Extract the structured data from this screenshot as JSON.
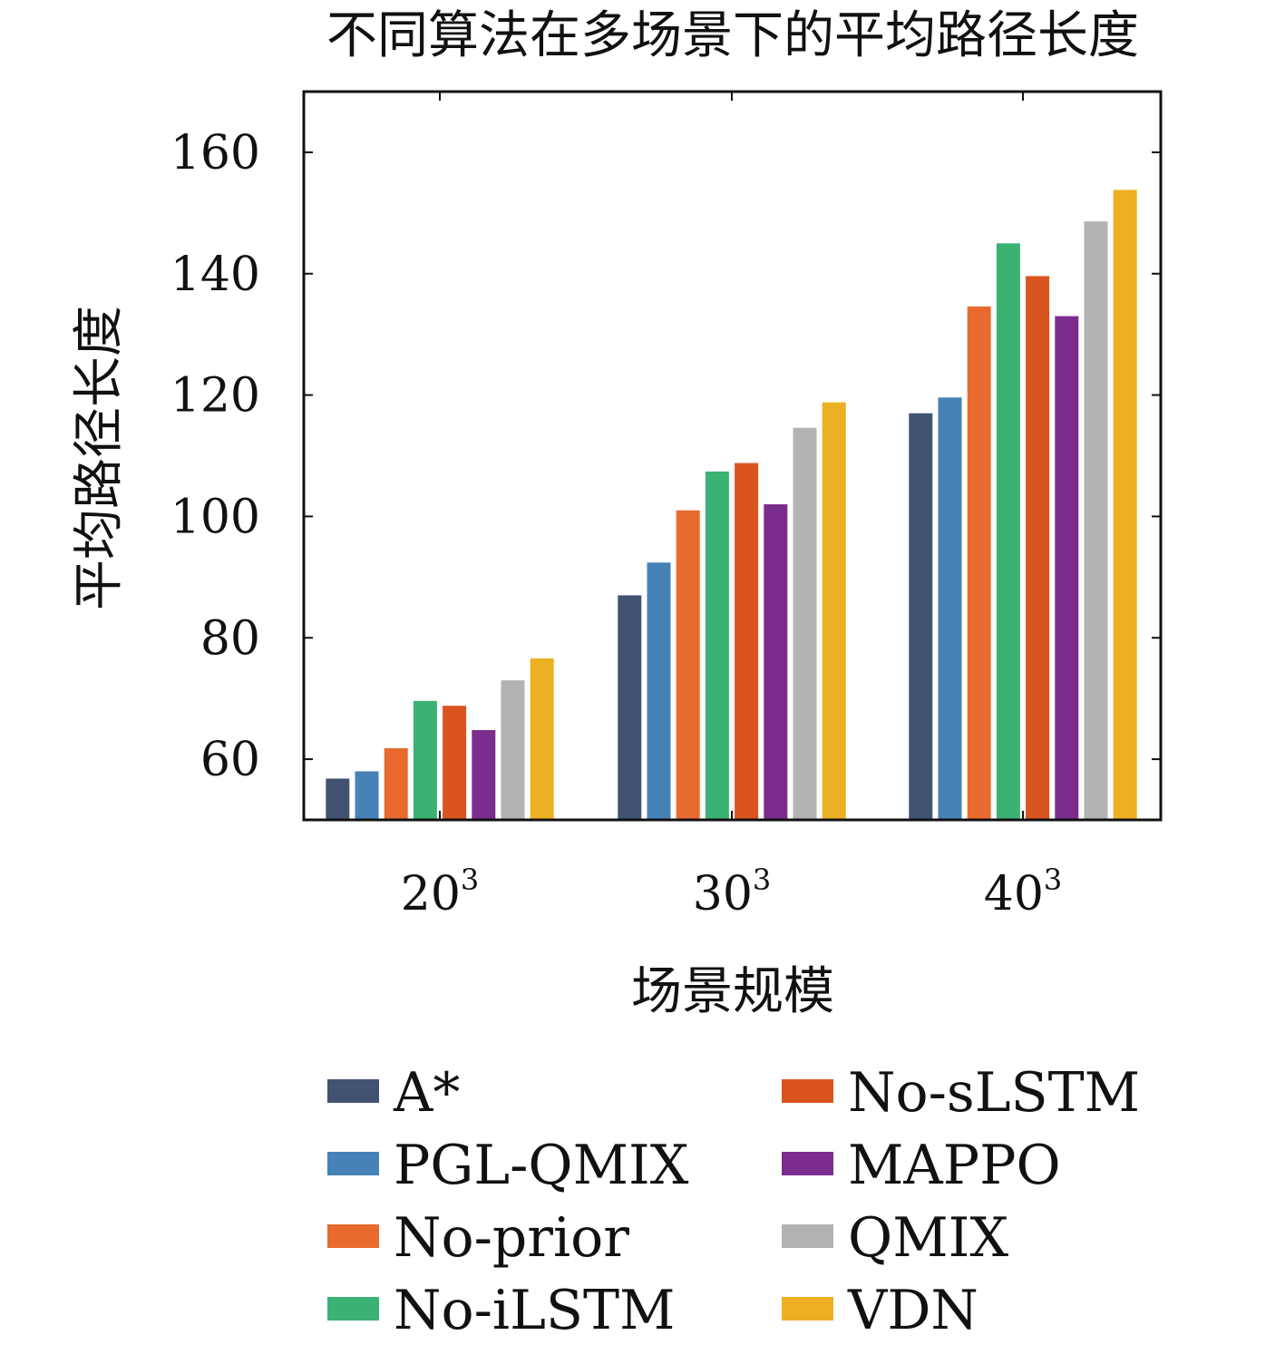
{
  "chart_data": {
    "type": "bar",
    "title": "不同算法在多场景下的平均路径长度",
    "xlabel": "场景规模",
    "ylabel": "平均路径长度",
    "categories": [
      {
        "base": "20",
        "exponent": "3"
      },
      {
        "base": "30",
        "exponent": "3"
      },
      {
        "base": "40",
        "exponent": "3"
      }
    ],
    "ylim": [
      50,
      170
    ],
    "yticks": [
      60,
      80,
      100,
      120,
      140,
      160
    ],
    "grid": false,
    "legend_position": "bottom",
    "series": [
      {
        "name": "A*",
        "color": "#425372",
        "values": [
          56.8,
          87.0,
          117.0
        ]
      },
      {
        "name": "PGL-QMIX",
        "color": "#4682B8",
        "values": [
          58.0,
          92.4,
          119.6
        ]
      },
      {
        "name": "No-prior",
        "color": "#E86A2E",
        "values": [
          61.8,
          101.0,
          134.6
        ]
      },
      {
        "name": "No-iLSTM",
        "color": "#3BB273",
        "values": [
          69.6,
          107.4,
          145.0
        ]
      },
      {
        "name": "No-sLSTM",
        "color": "#D9541E",
        "values": [
          68.8,
          108.8,
          139.6
        ]
      },
      {
        "name": "MAPPO",
        "color": "#7B2D8E",
        "values": [
          64.8,
          102.0,
          133.0
        ]
      },
      {
        "name": "QMIX",
        "color": "#B3B3B3",
        "values": [
          73.0,
          114.6,
          148.6
        ]
      },
      {
        "name": "VDN",
        "color": "#EDB022",
        "values": [
          76.6,
          118.8,
          153.8
        ]
      }
    ]
  }
}
